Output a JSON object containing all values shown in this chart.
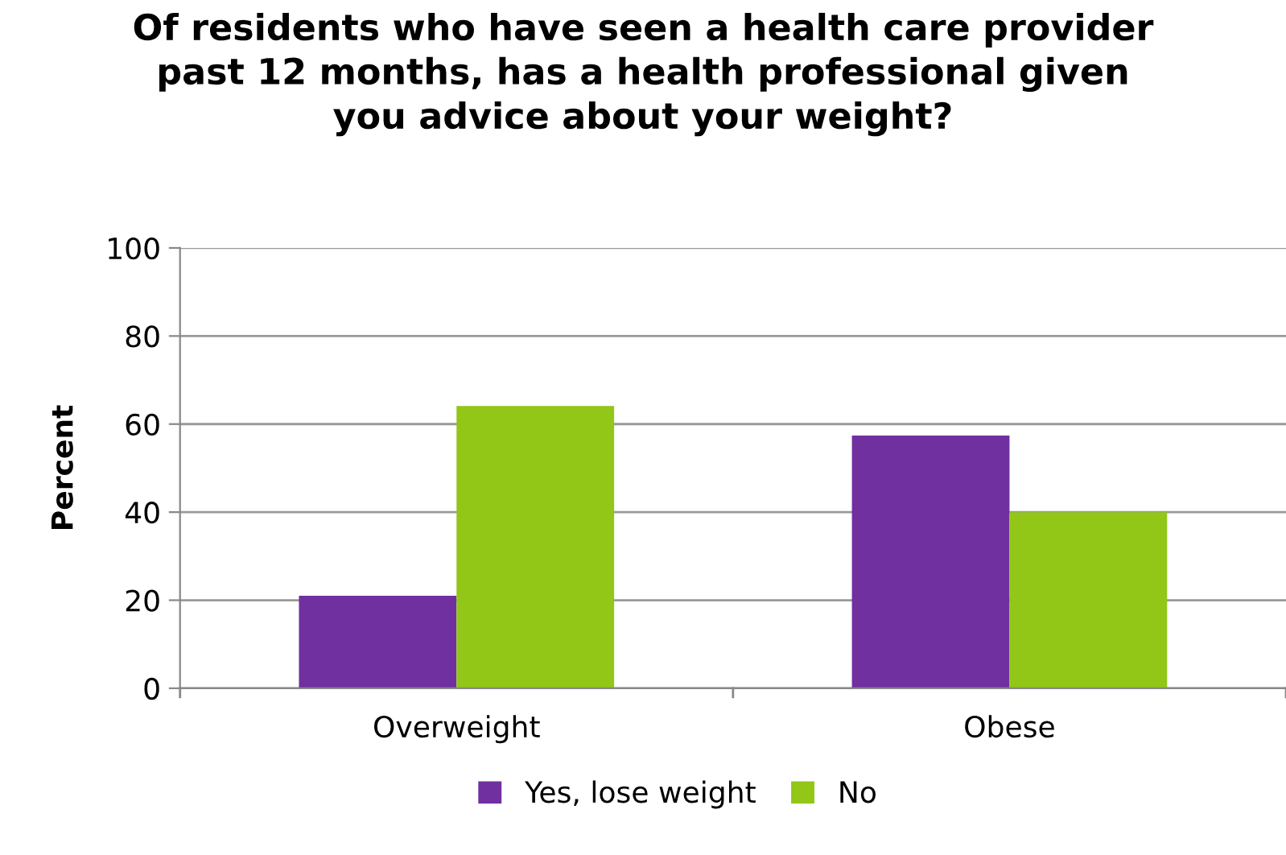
{
  "chart_data": {
    "type": "bar",
    "title": "Of residents who have seen a health care provider\npast 12 months, has a health professional given\nyou advice about your weight?",
    "ylabel": "Percent",
    "categories": [
      "Overweight",
      "Obese"
    ],
    "series": [
      {
        "name": "Yes, lose weight",
        "color": "#7030a0",
        "values": [
          21,
          57.4
        ]
      },
      {
        "name": "No",
        "color": "#92c617",
        "values": [
          64.1,
          40
        ]
      }
    ],
    "ylim": [
      0,
      100
    ],
    "yticks": [
      0,
      20,
      40,
      60,
      80,
      100
    ],
    "grid": "y",
    "legend": "bottom"
  }
}
